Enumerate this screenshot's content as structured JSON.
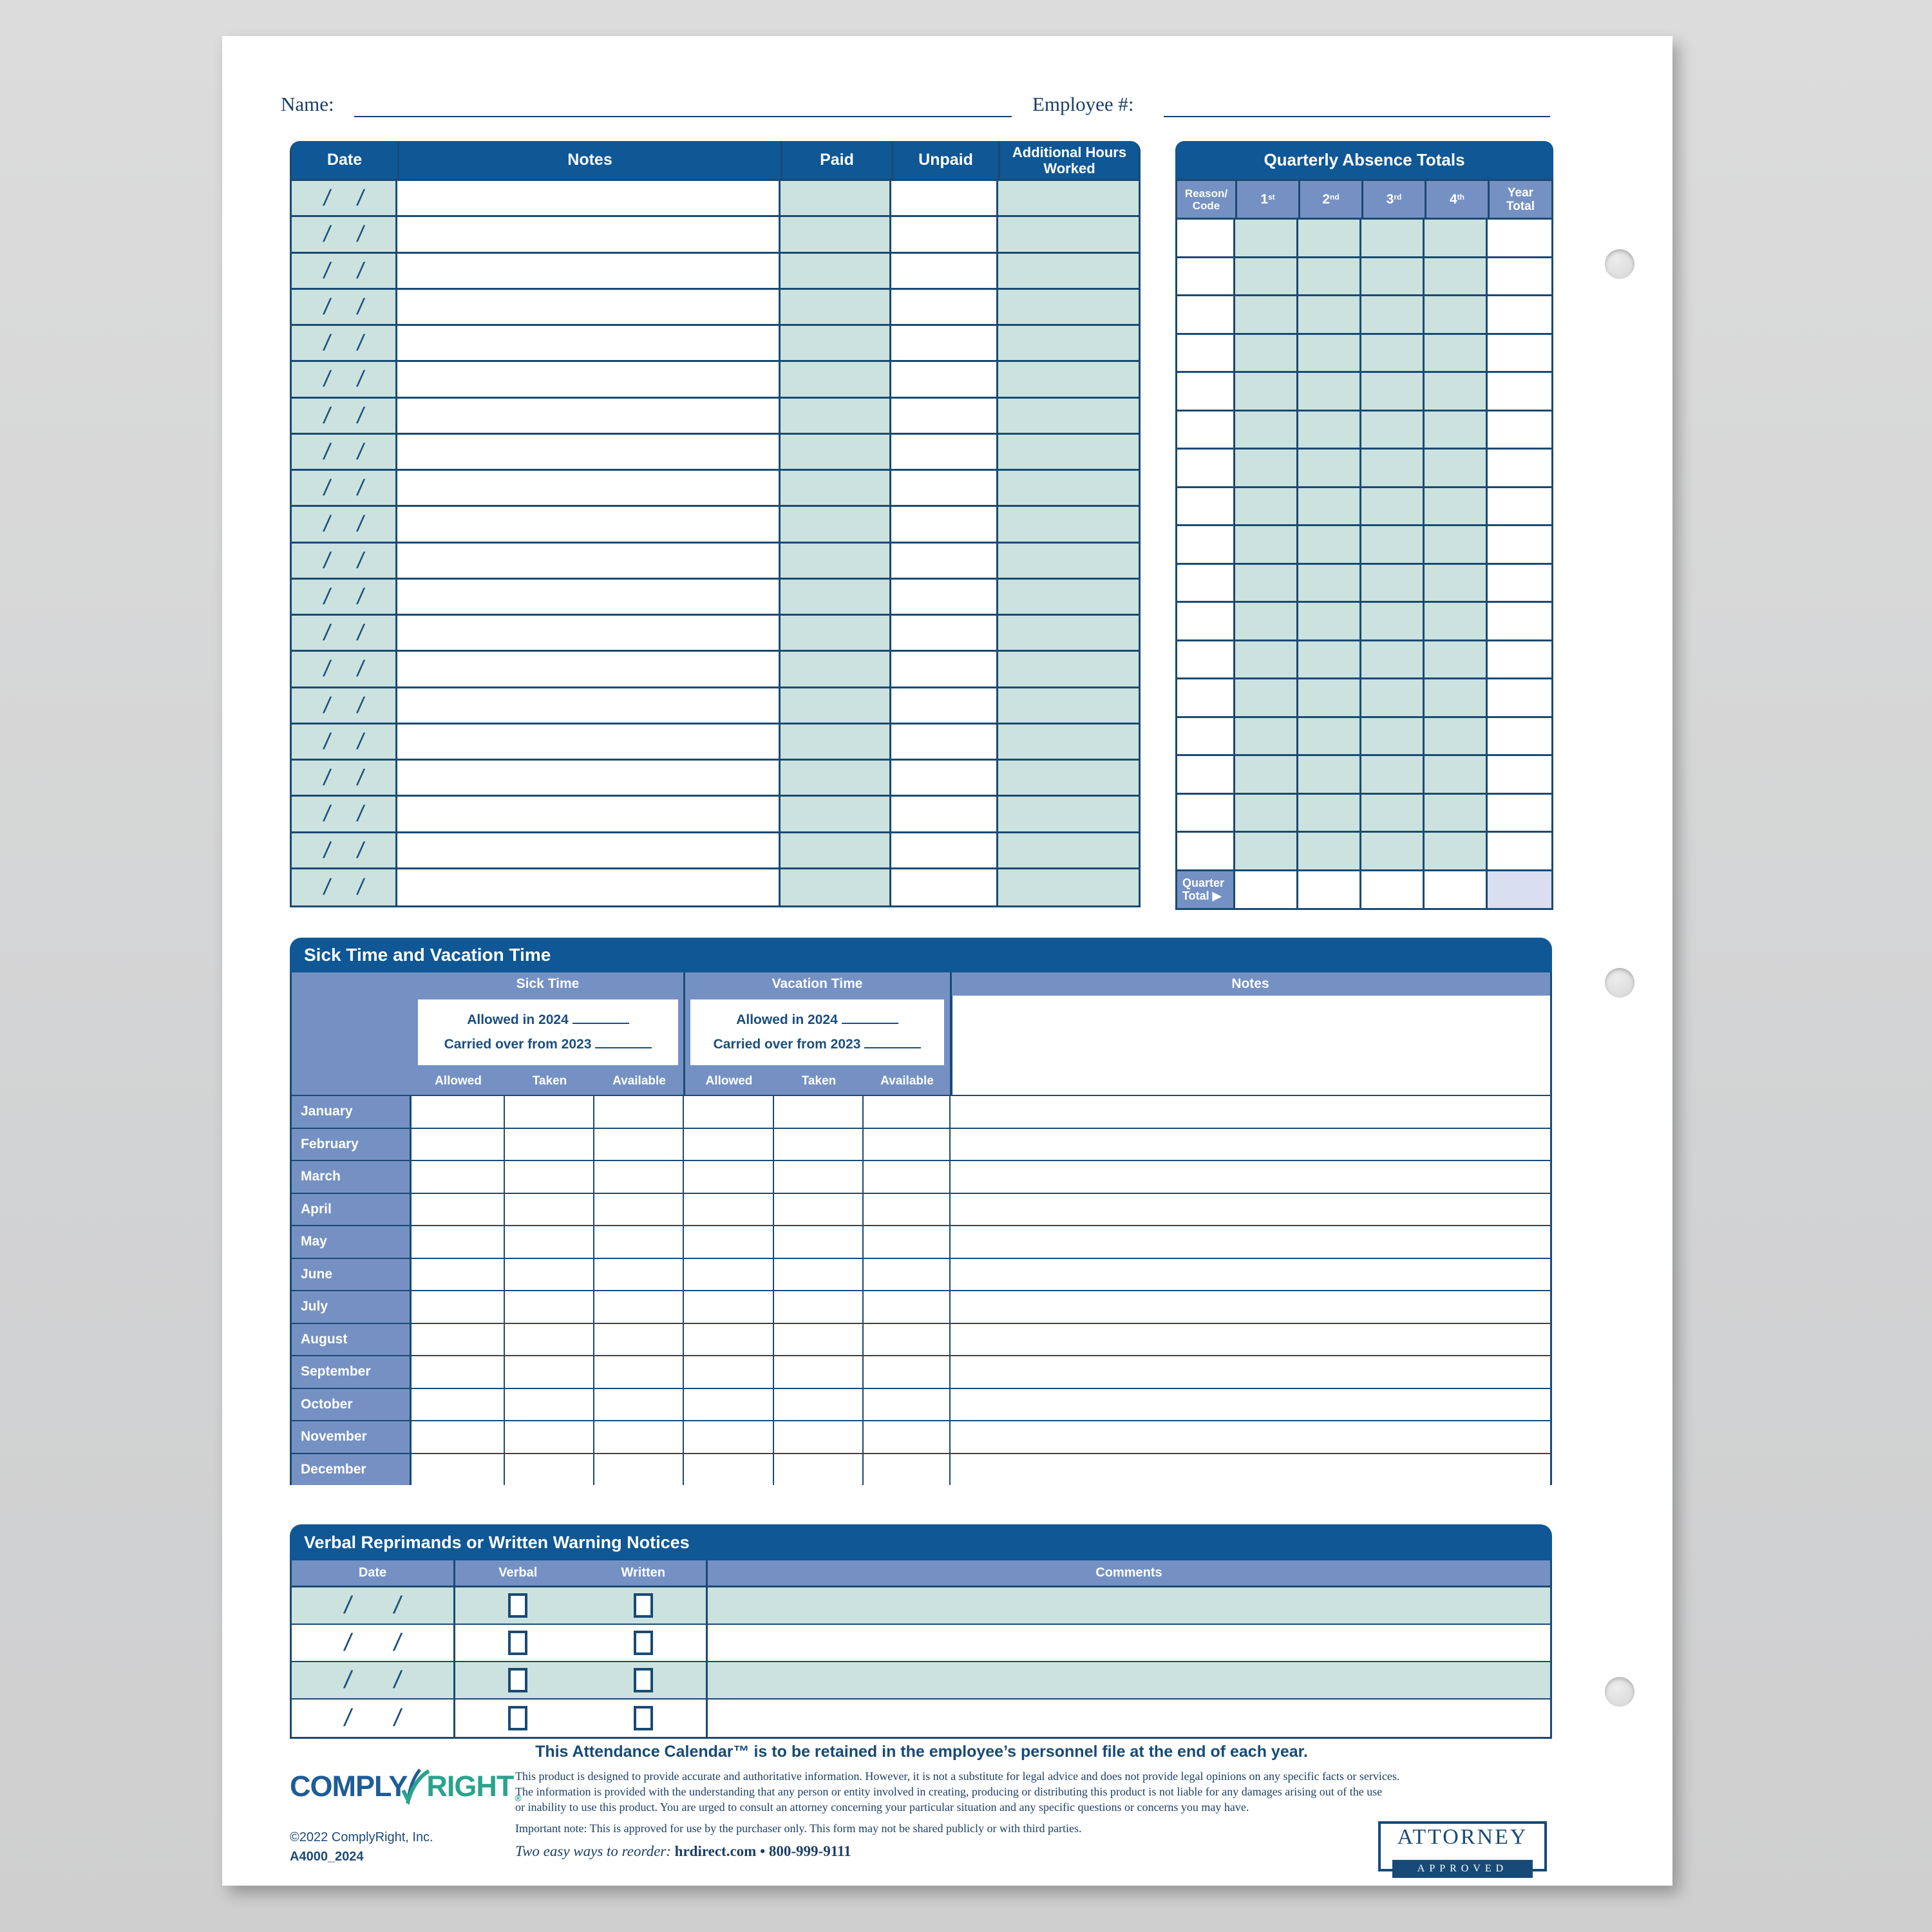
{
  "top": {
    "name_label": "Name:",
    "employee_label": "Employee #:"
  },
  "attendance_table": {
    "headers": {
      "date": "Date",
      "notes": "Notes",
      "paid": "Paid",
      "unpaid": "Unpaid",
      "additional": "Additional Hours Worked"
    },
    "row_count": 20
  },
  "quarterly_table": {
    "title": "Quarterly Absence Totals",
    "reason_header": "Reason/ Code",
    "quarters": [
      {
        "n": "1",
        "sup": "st"
      },
      {
        "n": "2",
        "sup": "nd"
      },
      {
        "n": "3",
        "sup": "rd"
      },
      {
        "n": "4",
        "sup": "th"
      }
    ],
    "year_total_header": "Year Total",
    "row_count": 17,
    "quarter_total_line1": "Quarter",
    "quarter_total_line2": "Total ▶"
  },
  "sick_vacation": {
    "title": "Sick Time and Vacation Time",
    "sick_header": "Sick Time",
    "vacation_header": "Vacation Time",
    "notes_header": "Notes",
    "allowed_in_label": "Allowed in 2024",
    "carried_over_label": "Carried over from 2023",
    "subcolumns": [
      "Allowed",
      "Taken",
      "Available"
    ],
    "months": [
      "January",
      "February",
      "March",
      "April",
      "May",
      "June",
      "July",
      "August",
      "September",
      "October",
      "November",
      "December"
    ]
  },
  "reprimands": {
    "title": "Verbal Reprimands or Written Warning Notices",
    "headers": {
      "date": "Date",
      "verbal": "Verbal",
      "written": "Written",
      "comments": "Comments"
    },
    "row_count": 4
  },
  "footer": {
    "statement": "This Attendance Calendar™ is to be retained in the employee’s personnel file at the end of each year.",
    "legal_lines": [
      "This product is designed to provide accurate and authoritative information. However, it is not a substitute for legal advice and does not provide legal opinions on any specific facts or services.",
      "The information is provided with the understanding that any person or entity involved in creating, producing or distributing this product is not liable for any damages arising out of the use",
      "or inability to use this product. You are urged to consult an attorney concerning your particular situation and any specific questions or concerns you may have."
    ],
    "important_note": "Important note: This is approved for use by the purchaser only. This form may not be shared publicly or with third parties.",
    "reorder_prefix": "Two easy ways to reorder:",
    "reorder_site": "hrdirect.com",
    "reorder_separator": "•",
    "reorder_phone": "800-999-9111",
    "copyright": "©2022 ComplyRight, Inc.",
    "sku": "A4000_2024",
    "logo": {
      "part1": "COMPLY",
      "part2": "RIGHT",
      "registered": "®"
    },
    "badge": {
      "line1": "ATTORNEY",
      "line2": "APPROVED"
    }
  },
  "colors": {
    "header_blue": "#0f5795",
    "subheader_blue": "#7591c3",
    "mint": "#cbe2de",
    "lavender": "#d9def0",
    "rule_navy": "#1a4a73"
  }
}
